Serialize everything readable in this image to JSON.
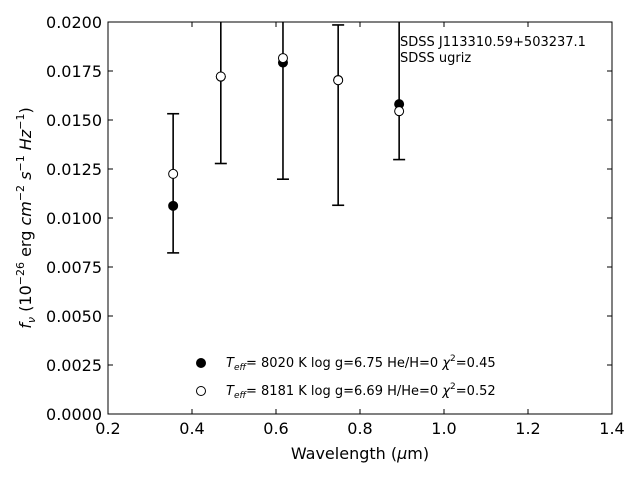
{
  "chart_data": {
    "type": "scatter",
    "xlabel": "Wavelength (μm)",
    "ylabel": "fν (10⁻²⁶ erg cm⁻² s⁻¹ Hz⁻¹)",
    "xlim": [
      0.2,
      1.4
    ],
    "ylim": [
      0.0,
      0.02
    ],
    "grid": false,
    "x_ticks": [
      "0.2",
      "0.4",
      "0.6",
      "0.8",
      "1.0",
      "1.2",
      "1.4"
    ],
    "y_ticks": [
      "0.0000",
      "0.0025",
      "0.0050",
      "0.0075",
      "0.0100",
      "0.0125",
      "0.0150",
      "0.0175",
      "0.0200"
    ],
    "annotation": [
      "SDSS J113310.59+503237.1",
      "SDSS ugriz"
    ],
    "observed": {
      "x": [
        0.3551,
        0.4686,
        0.6166,
        0.748,
        0.8932
      ],
      "y_lo": [
        0.00822,
        0.01278,
        0.01198,
        0.01065,
        0.01298
      ],
      "y_hi": [
        0.01532,
        0.0205,
        0.0205,
        0.01985,
        0.0205
      ]
    },
    "series": [
      {
        "name": "Teff= 8020 K log g=6.75 He/H=0 χ²=0.45",
        "marker": "filled",
        "x": [
          0.3551,
          0.4686,
          0.6166,
          0.748,
          0.8932
        ],
        "y": [
          0.01062,
          0.01721,
          0.01793,
          0.01704,
          0.01581
        ]
      },
      {
        "name": "Teff= 8181 K log g=6.69 H/He=0 χ²=0.52",
        "marker": "open",
        "x": [
          0.3551,
          0.4686,
          0.6166,
          0.748,
          0.8932
        ],
        "y": [
          0.01225,
          0.01722,
          0.01816,
          0.01703,
          0.01545
        ]
      }
    ],
    "legend": [
      {
        "teff": "8020 K",
        "logg": "log g=6.75",
        "comp": "He/H=0",
        "chi": "=0.45"
      },
      {
        "teff": "8181 K",
        "logg": "log g=6.69",
        "comp": "H/He=0",
        "chi": "=0.52"
      }
    ],
    "legend_position": "lower-center",
    "colors": {
      "marker": "#000000",
      "axes": "#000000",
      "background": "#ffffff"
    }
  }
}
